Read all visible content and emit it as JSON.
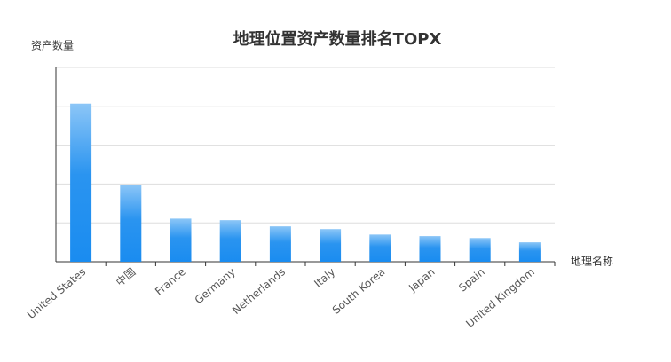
{
  "chart_data": {
    "type": "bar",
    "title": "地理位置资产数量排名TOPX",
    "y_label": "资产数量",
    "x_label": "地理名称",
    "categories": [
      "United States",
      "中国",
      "France",
      "Germany",
      "Netherlands",
      "Italy",
      "South Korea",
      "Japan",
      "Spain",
      "United Kingdom"
    ],
    "values": [
      4.07,
      1.98,
      1.11,
      1.07,
      0.91,
      0.84,
      0.7,
      0.66,
      0.61,
      0.5
    ],
    "color": "#1a8cf0",
    "ylim": [
      0,
      5
    ],
    "yticks": [
      0,
      1,
      2,
      3,
      4,
      5
    ],
    "grid": true
  }
}
